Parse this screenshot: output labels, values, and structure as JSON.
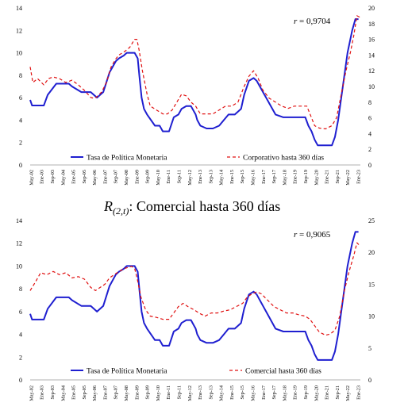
{
  "chart_data": [
    {
      "type": "line",
      "title": "",
      "correlation_label": "r = 0,9704",
      "left_axis": {
        "ylim": [
          0,
          14
        ],
        "ticks": [
          "0",
          "2",
          "4",
          "6",
          "8",
          "10",
          "12",
          "14"
        ]
      },
      "right_axis": {
        "ylim": [
          0,
          20
        ],
        "ticks": [
          "0",
          "2",
          "4",
          "6",
          "8",
          "10",
          "12",
          "14",
          "16",
          "18",
          "20"
        ]
      },
      "x_tick_labels": [
        "May-02",
        "Ene-03",
        "Sep-03",
        "May-04",
        "Ene-05",
        "Sep-05",
        "May-06",
        "Ene-07",
        "Sep-07",
        "May-08",
        "Ene-09",
        "Sep-09",
        "May-10",
        "Ene-11",
        "Sep-11",
        "May-12",
        "Ene-13",
        "Sep-13",
        "May-14",
        "Ene-15",
        "Sep-15",
        "May-16",
        "Ene-17",
        "Sep-17",
        "May-18",
        "Ene-19",
        "Sep-19",
        "May-20",
        "Ene-21",
        "Sep-21",
        "May-22",
        "Ene-23"
      ],
      "legend": [
        "Tasa de Política Monetaria",
        "Corporativo hasta 360 días"
      ],
      "series": [
        {
          "name": "Tasa de Política Monetaria",
          "axis": "left",
          "color": "#1f1fd0",
          "style": "solid",
          "x": [
            2002.33,
            2002.45,
            2003.2,
            2003.45,
            2004.0,
            2004.8,
            2005.0,
            2005.6,
            2005.9,
            2006.2,
            2006.6,
            2007.0,
            2007.4,
            2007.8,
            2008.0,
            2008.3,
            2008.5,
            2008.8,
            2009.0,
            2009.2,
            2009.3,
            2009.45,
            2009.6,
            2009.8,
            2010.3,
            2010.6,
            2010.8,
            2011.2,
            2011.5,
            2011.8,
            2012.0,
            2012.3,
            2012.6,
            2012.9,
            2013.0,
            2013.2,
            2013.6,
            2014.0,
            2014.4,
            2014.7,
            2015.0,
            2015.4,
            2015.8,
            2016.0,
            2016.3,
            2016.6,
            2016.8,
            2017.2,
            2017.6,
            2018.0,
            2018.5,
            2019.0,
            2019.5,
            2019.9,
            2020.1,
            2020.3,
            2020.5,
            2020.7,
            2021.2,
            2021.6,
            2021.8,
            2022.0,
            2022.3,
            2022.6,
            2022.9,
            2023.1,
            2023.3
          ],
          "values": [
            5.8,
            5.3,
            5.3,
            6.25,
            7.25,
            7.25,
            7.0,
            6.5,
            6.5,
            6.5,
            6.0,
            6.5,
            8.25,
            9.25,
            9.5,
            9.75,
            10.0,
            10.0,
            10.0,
            9.5,
            8.0,
            6.0,
            5.0,
            4.5,
            3.5,
            3.5,
            3.0,
            3.0,
            4.25,
            4.5,
            5.0,
            5.25,
            5.25,
            4.5,
            4.0,
            3.5,
            3.25,
            3.25,
            3.5,
            4.0,
            4.5,
            4.5,
            5.0,
            6.25,
            7.5,
            7.75,
            7.5,
            6.5,
            5.5,
            4.5,
            4.25,
            4.25,
            4.25,
            4.25,
            3.5,
            3.0,
            2.25,
            1.75,
            1.75,
            1.75,
            2.5,
            4.0,
            7.0,
            10.0,
            12.0,
            13.0,
            13.0
          ]
        },
        {
          "name": "Corporativo hasta 360 días",
          "axis": "right",
          "color": "#e01010",
          "style": "dashed",
          "x": [
            2002.33,
            2002.5,
            2002.8,
            2003.2,
            2003.5,
            2003.8,
            2004.2,
            2004.6,
            2005.0,
            2005.4,
            2005.8,
            2006.2,
            2006.4,
            2006.6,
            2006.9,
            2007.2,
            2007.5,
            2007.8,
            2008.0,
            2008.4,
            2008.7,
            2009.0,
            2009.15,
            2009.3,
            2009.5,
            2009.8,
            2010.0,
            2010.4,
            2010.8,
            2011.1,
            2011.4,
            2011.7,
            2012.0,
            2012.3,
            2012.6,
            2012.9,
            2013.2,
            2013.6,
            2014.0,
            2014.4,
            2014.8,
            2015.2,
            2015.6,
            2016.0,
            2016.3,
            2016.6,
            2016.9,
            2017.2,
            2017.6,
            2018.0,
            2018.4,
            2018.8,
            2019.2,
            2019.6,
            2020.0,
            2020.2,
            2020.5,
            2020.8,
            2021.2,
            2021.6,
            2021.9,
            2022.2,
            2022.5,
            2022.8,
            2023.0,
            2023.2,
            2023.4
          ],
          "values": [
            12.5,
            10.5,
            11.0,
            10.2,
            11.0,
            11.2,
            11.0,
            10.5,
            10.8,
            10.2,
            9.5,
            8.6,
            8.5,
            8.7,
            9.3,
            10.5,
            12.5,
            13.5,
            14.0,
            14.5,
            15.0,
            16.0,
            16.0,
            14.5,
            12.0,
            9.0,
            7.5,
            7.0,
            6.5,
            6.5,
            7.0,
            8.0,
            9.0,
            8.8,
            8.0,
            7.5,
            6.5,
            6.5,
            6.5,
            7.0,
            7.5,
            7.5,
            8.0,
            10.0,
            11.3,
            12.0,
            11.0,
            9.5,
            8.5,
            8.0,
            7.5,
            7.2,
            7.5,
            7.5,
            7.5,
            6.5,
            5.0,
            4.7,
            4.6,
            5.0,
            6.0,
            9.0,
            12.0,
            14.5,
            16.5,
            19.0,
            18.8
          ]
        }
      ]
    },
    {
      "type": "line",
      "title": "R(2,t): Comercial hasta 360 días",
      "title_main": "R",
      "title_sub": "(2,t)",
      "title_rest": ": Comercial hasta 360 días",
      "correlation_label": "r = 0,9065",
      "left_axis": {
        "ylim": [
          0,
          14
        ],
        "ticks": [
          "0",
          "2",
          "4",
          "6",
          "8",
          "10",
          "12",
          "14"
        ]
      },
      "right_axis": {
        "ylim": [
          0,
          25
        ],
        "ticks": [
          "0",
          "5",
          "10",
          "15",
          "20",
          "25"
        ]
      },
      "x_tick_labels": [
        "May-02",
        "Ene-03",
        "Sep-03",
        "May-04",
        "Ene-05",
        "Sep-05",
        "May-06",
        "Ene-07",
        "Sep-07",
        "May-08",
        "Ene-09",
        "Sep-09",
        "May-10",
        "Ene-11",
        "Sep-11",
        "May-12",
        "Ene-13",
        "Sep-13",
        "May-14",
        "Ene-15",
        "Sep-15",
        "May-16",
        "Ene-17",
        "Sep-17",
        "May-18",
        "Ene-19",
        "Sep-19",
        "May-20",
        "Ene-21",
        "Sep-21",
        "May-22",
        "Ene-23"
      ],
      "legend": [
        "Tasa de Política Monetaria",
        "Comercial hasta 360 días"
      ],
      "series": [
        {
          "name": "Tasa de Política Monetaria",
          "axis": "left",
          "color": "#1f1fd0",
          "style": "solid",
          "x": [
            2002.33,
            2002.45,
            2003.2,
            2003.45,
            2004.0,
            2004.8,
            2005.0,
            2005.6,
            2005.9,
            2006.2,
            2006.6,
            2007.0,
            2007.4,
            2007.8,
            2008.0,
            2008.3,
            2008.5,
            2008.8,
            2009.0,
            2009.2,
            2009.3,
            2009.45,
            2009.6,
            2009.8,
            2010.3,
            2010.6,
            2010.8,
            2011.2,
            2011.5,
            2011.8,
            2012.0,
            2012.3,
            2012.6,
            2012.9,
            2013.0,
            2013.2,
            2013.6,
            2014.0,
            2014.4,
            2014.7,
            2015.0,
            2015.4,
            2015.8,
            2016.0,
            2016.3,
            2016.6,
            2016.8,
            2017.2,
            2017.6,
            2018.0,
            2018.5,
            2019.0,
            2019.5,
            2019.9,
            2020.1,
            2020.3,
            2020.5,
            2020.7,
            2021.2,
            2021.6,
            2021.8,
            2022.0,
            2022.3,
            2022.6,
            2022.9,
            2023.1,
            2023.3
          ],
          "values": [
            5.8,
            5.3,
            5.3,
            6.25,
            7.25,
            7.25,
            7.0,
            6.5,
            6.5,
            6.5,
            6.0,
            6.5,
            8.25,
            9.25,
            9.5,
            9.75,
            10.0,
            10.0,
            10.0,
            9.5,
            8.0,
            6.0,
            5.0,
            4.5,
            3.5,
            3.5,
            3.0,
            3.0,
            4.25,
            4.5,
            5.0,
            5.25,
            5.25,
            4.5,
            4.0,
            3.5,
            3.25,
            3.25,
            3.5,
            4.0,
            4.5,
            4.5,
            5.0,
            6.25,
            7.5,
            7.75,
            7.5,
            6.5,
            5.5,
            4.5,
            4.25,
            4.25,
            4.25,
            4.25,
            3.5,
            3.0,
            2.25,
            1.75,
            1.75,
            1.75,
            2.5,
            4.0,
            7.0,
            10.0,
            12.0,
            13.0,
            13.0
          ]
        },
        {
          "name": "Comercial hasta 360 días",
          "axis": "right",
          "color": "#e01010",
          "style": "dashed",
          "x": [
            2002.33,
            2002.7,
            2003.0,
            2003.4,
            2003.8,
            2004.2,
            2004.6,
            2005.0,
            2005.4,
            2005.8,
            2006.2,
            2006.5,
            2006.8,
            2007.1,
            2007.4,
            2007.7,
            2008.0,
            2008.4,
            2008.8,
            2009.0,
            2009.2,
            2009.4,
            2009.7,
            2010.0,
            2010.4,
            2010.8,
            2011.2,
            2011.5,
            2011.8,
            2012.1,
            2012.4,
            2012.8,
            2013.1,
            2013.5,
            2013.9,
            2014.3,
            2014.7,
            2015.1,
            2015.5,
            2015.9,
            2016.2,
            2016.5,
            2016.8,
            2017.1,
            2017.5,
            2017.9,
            2018.3,
            2018.7,
            2019.1,
            2019.5,
            2019.9,
            2020.2,
            2020.5,
            2020.8,
            2021.2,
            2021.5,
            2021.8,
            2022.1,
            2022.4,
            2022.7,
            2023.0,
            2023.2,
            2023.4
          ],
          "values": [
            14.0,
            15.5,
            16.8,
            16.5,
            17.0,
            16.5,
            16.8,
            16.0,
            16.2,
            15.8,
            14.5,
            14.0,
            14.5,
            15.0,
            16.0,
            16.5,
            17.0,
            17.5,
            17.8,
            17.5,
            15.5,
            13.0,
            11.0,
            10.0,
            9.8,
            9.5,
            9.5,
            10.5,
            11.5,
            12.0,
            11.5,
            11.0,
            10.5,
            10.0,
            10.5,
            10.5,
            10.8,
            11.0,
            11.5,
            12.0,
            13.0,
            13.5,
            13.8,
            13.5,
            12.5,
            11.5,
            11.0,
            10.5,
            10.5,
            10.2,
            10.0,
            9.5,
            8.5,
            7.5,
            7.0,
            7.2,
            7.8,
            10.0,
            14.0,
            17.0,
            19.5,
            21.5,
            21.0
          ]
        }
      ]
    }
  ],
  "colors": {
    "tpm": "#1f1fd0",
    "dashed_series": "#e01010",
    "axis": "#b0b0b0"
  }
}
